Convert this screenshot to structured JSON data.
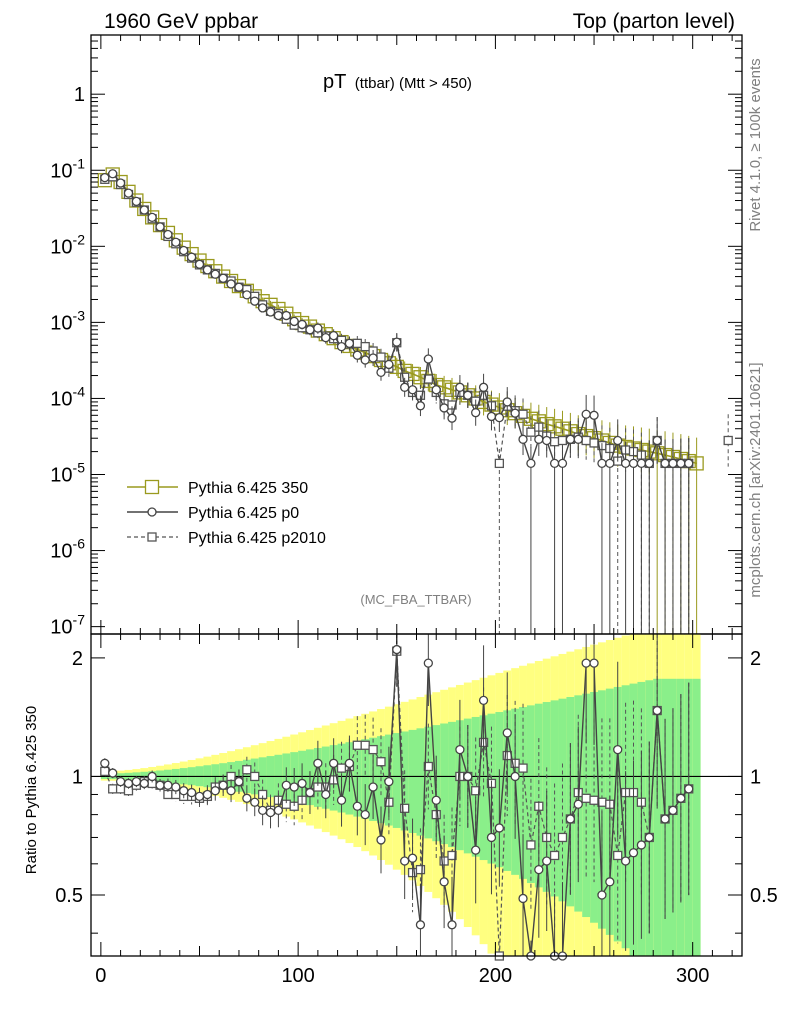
{
  "header": {
    "left": "1960 GeV ppbar",
    "right": "Top (parton level)"
  },
  "side_label": {
    "rivet": "Rivet 4.1.0, ≥ 100k events",
    "mcplots": "mcplots.cern.ch [arXiv:2401.10621]"
  },
  "colors": {
    "ref": "#9a9a1e",
    "p0": "#444444",
    "p2010": "#555555",
    "band_yellow": "#ffff80",
    "band_green": "#8aef8a"
  },
  "chart_data": {
    "type": "line",
    "title_main": "pT",
    "title_sub": "(ttbar) (Mtt > 450)",
    "analysis": "(MC_FBA_TTBAR)",
    "xlabel": "",
    "ylabel_ratio": "Ratio to Pythia 6.425 350",
    "xlim": [
      -5,
      325
    ],
    "ylim_main": [
      8e-08,
      6
    ],
    "ylim_ratio": [
      0.35,
      2.3
    ],
    "yscale_main": "log",
    "yscale_ratio": "log",
    "x_ticks": [
      "0",
      "100",
      "200",
      "300"
    ],
    "y_ticks_main": [
      "1",
      "10^-1",
      "10^-2",
      "10^-3",
      "10^-4",
      "10^-5",
      "10^-6",
      "10^-7"
    ],
    "y_ticks_ratio": [
      "0.5",
      "1",
      "2"
    ],
    "legend": [
      {
        "label": "Pythia 6.425 350",
        "style": "solid",
        "marker": "square"
      },
      {
        "label": "Pythia 6.425 p0",
        "style": "solid",
        "marker": "circle"
      },
      {
        "label": "Pythia 6.425 p2010",
        "style": "dashed",
        "marker": "small-square"
      }
    ],
    "x": [
      2,
      6,
      10,
      14,
      18,
      22,
      26,
      30,
      34,
      38,
      42,
      46,
      50,
      54,
      58,
      62,
      66,
      70,
      74,
      78,
      82,
      86,
      90,
      94,
      98,
      102,
      106,
      110,
      114,
      118,
      122,
      126,
      130,
      134,
      138,
      142,
      146,
      150,
      154,
      158,
      162,
      166,
      170,
      174,
      178,
      182,
      186,
      190,
      194,
      198,
      202,
      206,
      210,
      214,
      218,
      222,
      226,
      230,
      234,
      238,
      242,
      246,
      250,
      254,
      258,
      262,
      266,
      270,
      274,
      278,
      282,
      286,
      290,
      294,
      298,
      302,
      318
    ],
    "series": [
      {
        "name": "Pythia 6.425 350",
        "values": [
          0.074,
          0.088,
          0.07,
          0.052,
          0.04,
          0.031,
          0.024,
          0.019,
          0.015,
          0.012,
          0.0096,
          0.0079,
          0.0065,
          0.0055,
          0.0047,
          0.004,
          0.0035,
          0.003,
          0.0026,
          0.0022,
          0.0019,
          0.0017,
          0.0015,
          0.0013,
          0.0011,
          0.00098,
          0.00088,
          0.00078,
          0.0007,
          0.00062,
          0.00055,
          0.00049,
          0.00044,
          0.0004,
          0.00036,
          0.00032,
          0.00029,
          0.00026,
          0.00023,
          0.00021,
          0.00019,
          0.00017,
          0.00015,
          0.00014,
          0.00013,
          0.00012,
          0.00011,
          0.0001,
          9e-05,
          8.3e-05,
          7.6e-05,
          7e-05,
          6.4e-05,
          5.9e-05,
          5.4e-05,
          5e-05,
          4.6e-05,
          4.3e-05,
          4e-05,
          3.7e-05,
          3.4e-05,
          3.2e-05,
          3e-05,
          2.8e-05,
          2.6e-05,
          2.4e-05,
          2.3e-05,
          2.2e-05,
          2.1e-05,
          2e-05,
          1.9e-05,
          1.8e-05,
          1.7e-05,
          1.6e-05,
          1.5e-05,
          1.4e-05,
          null
        ]
      },
      {
        "name": "Pythia 6.425 p0",
        "values": [
          0.08,
          0.09,
          0.068,
          0.05,
          0.039,
          0.03,
          0.024,
          0.018,
          0.0143,
          0.0113,
          0.0088,
          0.0072,
          0.0058,
          0.0049,
          0.0043,
          0.0038,
          0.0032,
          0.0029,
          0.0023,
          0.0019,
          0.00155,
          0.00137,
          0.00123,
          0.00123,
          0.00103,
          0.00094,
          0.0008,
          0.00084,
          0.00063,
          0.00067,
          0.00048,
          0.00053,
          0.00037,
          0.00032,
          0.00034,
          0.00022,
          0.00028,
          0.00055,
          0.00014,
          0.00013,
          8e-05,
          0.00033,
          0.00013,
          7.5e-05,
          5.5e-05,
          0.00014,
          0.00011,
          6.5e-05,
          0.00014,
          5.8e-05,
          5.6e-05,
          9e-05,
          6.4e-05,
          2.9e-05,
          1.4e-05,
          2.9e-05,
          2.8e-05,
          1.4e-05,
          1.4e-05,
          2.9e-05,
          2.9e-05,
          6.2e-05,
          6e-05,
          1.4e-05,
          1.4e-05,
          2.8e-05,
          1.4e-05,
          1.4e-05,
          1.4e-05,
          1.4e-05,
          2.8e-05,
          1.4e-05,
          1.4e-05,
          1.4e-05,
          1.4e-05,
          null,
          null
        ]
      },
      {
        "name": "Pythia 6.425 p2010",
        "values": [
          0.076,
          0.082,
          0.065,
          0.048,
          0.038,
          0.03,
          0.023,
          0.018,
          0.0135,
          0.0108,
          0.0085,
          0.007,
          0.0057,
          0.0049,
          0.0044,
          0.0038,
          0.0035,
          0.0029,
          0.0027,
          0.0022,
          0.0017,
          0.0014,
          0.0013,
          0.0011,
          0.00092,
          0.00085,
          0.0008,
          0.00073,
          0.00066,
          0.00061,
          0.00058,
          0.00052,
          0.00053,
          0.00048,
          0.00042,
          0.00035,
          0.00025,
          0.00054,
          0.00019,
          0.00012,
          0.00011,
          0.00018,
          0.00012,
          8.5e-05,
          8.2e-05,
          0.00012,
          0.00011,
          9.2e-05,
          0.00011,
          8e-05,
          1.4e-05,
          7.9e-05,
          6.9e-05,
          6.2e-05,
          3.6e-05,
          4.2e-05,
          3.2e-05,
          2.7e-05,
          2.8e-05,
          2.9e-05,
          3.1e-05,
          2.8e-05,
          2.6e-05,
          2.4e-05,
          2.2e-05,
          1.5e-05,
          2.1e-05,
          2e-05,
          1.8e-05,
          1.4e-05,
          2.8e-05,
          1.4e-05,
          1.4e-05,
          1.4e-05,
          1.4e-05,
          null,
          2.8e-05
        ]
      }
    ],
    "ratio_series": [
      {
        "name": "Pythia 6.425 p0",
        "values": [
          1.08,
          1.02,
          0.97,
          0.96,
          0.97,
          0.96,
          1,
          0.95,
          0.95,
          0.94,
          0.92,
          0.91,
          0.89,
          0.9,
          0.92,
          0.95,
          0.92,
          0.97,
          0.88,
          0.86,
          0.82,
          0.81,
          0.82,
          0.95,
          0.94,
          0.96,
          0.91,
          1.08,
          0.9,
          1.08,
          0.87,
          1.08,
          0.84,
          0.8,
          0.94,
          0.69,
          0.97,
          2.1,
          0.61,
          0.62,
          0.42,
          1.94,
          0.87,
          0.54,
          0.42,
          1.17,
          1,
          0.65,
          1.56,
          0.7,
          0.74,
          1.29,
          1,
          0.49,
          0.26,
          0.58,
          0.61,
          0.33,
          0.35,
          0.78,
          0.85,
          1.94,
          1.94,
          0.5,
          0.54,
          1.17,
          0.61,
          0.64,
          0.67,
          0.7,
          1.47,
          0.78,
          0.82,
          0.88,
          0.93,
          null,
          null
        ]
      },
      {
        "name": "Pythia 6.425 p2010",
        "values": [
          1.03,
          0.93,
          0.93,
          0.92,
          0.95,
          0.97,
          0.96,
          0.95,
          0.9,
          0.9,
          0.89,
          0.89,
          0.88,
          0.89,
          0.94,
          0.95,
          1,
          0.97,
          1.04,
          1,
          0.9,
          0.82,
          0.87,
          0.85,
          0.84,
          0.87,
          0.91,
          0.94,
          0.94,
          0.98,
          1.05,
          1.06,
          1.2,
          1.2,
          1.17,
          1.09,
          0.86,
          2.08,
          0.83,
          0.57,
          0.58,
          1.06,
          0.8,
          0.61,
          0.63,
          1,
          1,
          0.92,
          1.22,
          0.96,
          0.18,
          1.13,
          1.08,
          1.05,
          0.67,
          0.84,
          0.7,
          0.63,
          0.7,
          0.78,
          0.91,
          0.88,
          0.87,
          0.86,
          0.85,
          0.63,
          0.91,
          0.91,
          0.86,
          0.7,
          1.47,
          0.78,
          0.82,
          0.88,
          0.93,
          null,
          null
        ]
      }
    ]
  }
}
